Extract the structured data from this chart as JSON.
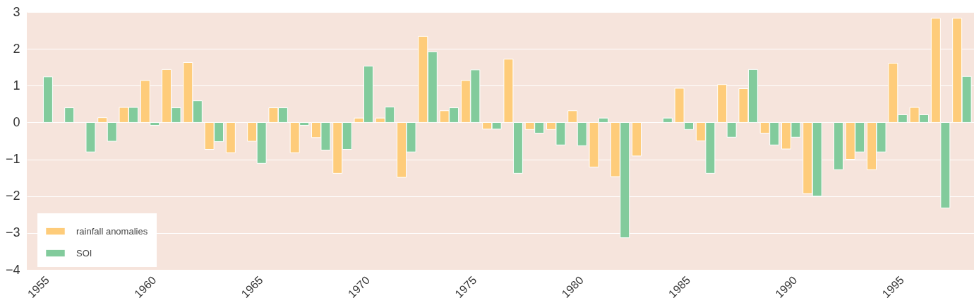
{
  "chart_data": {
    "type": "bar",
    "x": [
      1955,
      1956,
      1957,
      1958,
      1959,
      1960,
      1961,
      1962,
      1963,
      1964,
      1965,
      1966,
      1967,
      1968,
      1969,
      1970,
      1971,
      1972,
      1973,
      1974,
      1975,
      1976,
      1977,
      1978,
      1979,
      1980,
      1981,
      1982,
      1983,
      1984,
      1985,
      1986,
      1987,
      1988,
      1989,
      1990,
      1991,
      1992,
      1993,
      1994,
      1995,
      1996,
      1997,
      1998
    ],
    "series": [
      {
        "name": "rainfall anomalies",
        "color": "#fecc7a",
        "values": [
          null,
          null,
          null,
          0.13,
          0.41,
          1.14,
          1.44,
          1.63,
          -0.73,
          -0.82,
          -0.51,
          0.4,
          -0.82,
          -0.41,
          -1.38,
          0.12,
          0.12,
          -1.49,
          2.34,
          0.32,
          1.14,
          -0.18,
          1.72,
          -0.19,
          -0.19,
          0.32,
          -1.21,
          -1.47,
          -0.91,
          null,
          0.93,
          -0.5,
          1.03,
          0.92,
          -0.29,
          -0.72,
          -1.93,
          null,
          -1.0,
          -1.28,
          1.61,
          0.41,
          2.83,
          2.83
        ]
      },
      {
        "name": "SOI",
        "color": "#82cb9c",
        "values": [
          1.24,
          0.4,
          -0.8,
          -0.51,
          0.41,
          -0.08,
          0.4,
          0.59,
          -0.52,
          null,
          -1.11,
          0.4,
          -0.08,
          -0.75,
          -0.73,
          1.53,
          0.42,
          -0.8,
          1.92,
          0.4,
          1.43,
          -0.18,
          -1.38,
          -0.29,
          -0.61,
          -0.63,
          0.12,
          -3.13,
          null,
          0.12,
          -0.19,
          -1.38,
          -0.4,
          1.44,
          -0.61,
          -0.4,
          -2.0,
          -1.28,
          -0.8,
          -0.8,
          0.21,
          0.21,
          -2.32,
          1.25
        ]
      }
    ],
    "xlim": [
      1954.4,
      1998.4
    ],
    "xticks": [
      1955,
      1960,
      1965,
      1970,
      1975,
      1980,
      1985,
      1990,
      1995
    ],
    "ylim": [
      -4,
      3
    ],
    "yticks": [
      -4,
      -3,
      -2,
      -1,
      0,
      1,
      2,
      3
    ],
    "grid": "y",
    "legend": "bottom left"
  }
}
